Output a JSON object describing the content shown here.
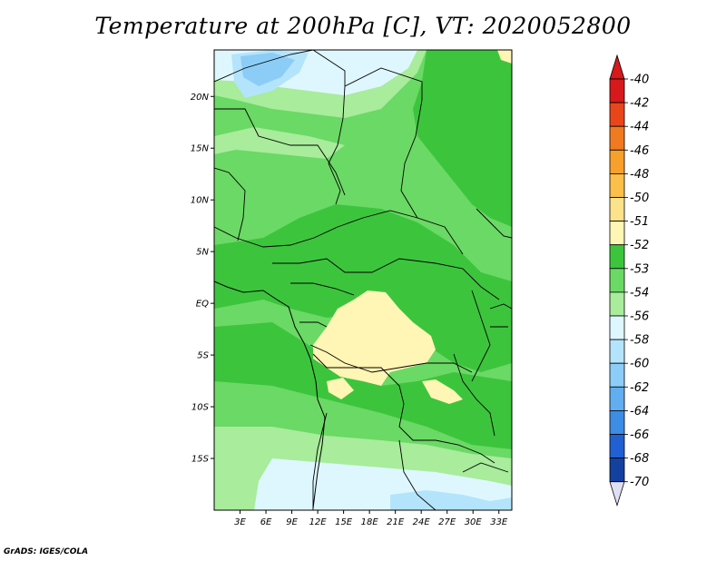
{
  "title": "Temperature at 200hPa [C], VT: 2020052800",
  "credit": "GrADS: IGES/COLA",
  "map": {
    "lat_range": [
      -20,
      24.5
    ],
    "lon_range": [
      0,
      34.5
    ],
    "lat_ticks": [
      {
        "value": 20,
        "label": "20N"
      },
      {
        "value": 15,
        "label": "15N"
      },
      {
        "value": 10,
        "label": "10N"
      },
      {
        "value": 5,
        "label": "5N"
      },
      {
        "value": 0,
        "label": "EQ"
      },
      {
        "value": -5,
        "label": "5S"
      },
      {
        "value": -10,
        "label": "10S"
      },
      {
        "value": -15,
        "label": "15S"
      }
    ],
    "lon_ticks": [
      {
        "value": 3,
        "label": "3E"
      },
      {
        "value": 6,
        "label": "6E"
      },
      {
        "value": 9,
        "label": "9E"
      },
      {
        "value": 12,
        "label": "12E"
      },
      {
        "value": 15,
        "label": "15E"
      },
      {
        "value": 18,
        "label": "18E"
      },
      {
        "value": 21,
        "label": "21E"
      },
      {
        "value": 24,
        "label": "24E"
      },
      {
        "value": 27,
        "label": "27E"
      },
      {
        "value": 30,
        "label": "30E"
      },
      {
        "value": 33,
        "label": "33E"
      }
    ]
  },
  "colorbar": {
    "levels": [
      {
        "label": "-40",
        "color": "#d7191c"
      },
      {
        "label": "-42",
        "color": "#e8461a"
      },
      {
        "label": "-44",
        "color": "#f07a20"
      },
      {
        "label": "-46",
        "color": "#f7a02c"
      },
      {
        "label": "-48",
        "color": "#fbbf4a"
      },
      {
        "label": "-50",
        "color": "#fde28c"
      },
      {
        "label": "-51",
        "color": "#fff5b4"
      },
      {
        "label": "-52",
        "color": "#3dc43d"
      },
      {
        "label": "-53",
        "color": "#6bd965"
      },
      {
        "label": "-54",
        "color": "#a8ec9c"
      },
      {
        "label": "-56",
        "color": "#def7ff"
      },
      {
        "label": "-58",
        "color": "#b4e4fb"
      },
      {
        "label": "-60",
        "color": "#8ccdf7"
      },
      {
        "label": "-62",
        "color": "#62aef0"
      },
      {
        "label": "-64",
        "color": "#3d8ce6"
      },
      {
        "label": "-66",
        "color": "#2060d2"
      },
      {
        "label": "-68",
        "color": "#1440a0"
      },
      {
        "label": "-70",
        "color": "#0a1c78"
      }
    ],
    "top_triangle_color": "#d7191c",
    "bottom_triangle_color": "#e0e0f4"
  },
  "field_colors": {
    "deep_green": "#3dc43d",
    "green": "#6bd965",
    "light_green": "#a8ec9c",
    "pale_cyan": "#def7ff",
    "light_blue": "#b4e4fb",
    "blue": "#8ccdf7",
    "yellow": "#fff5b4"
  }
}
